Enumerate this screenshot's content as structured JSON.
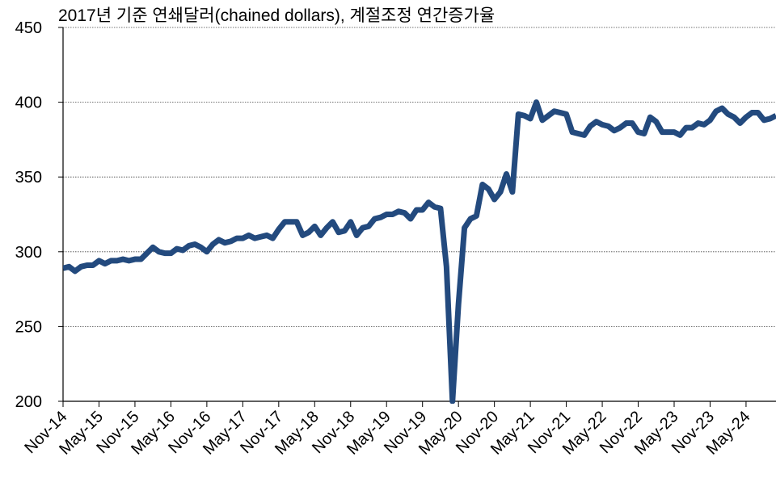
{
  "chart_data": {
    "type": "line",
    "title": "2017년 기준 연쇄달러(chained dollars), 계절조정 연간증가율",
    "categories": [
      "Nov-14",
      null,
      null,
      null,
      null,
      null,
      "May-15",
      null,
      null,
      null,
      null,
      null,
      "Nov-15",
      null,
      null,
      null,
      null,
      null,
      "May-16",
      null,
      null,
      null,
      null,
      null,
      "Nov-16",
      null,
      null,
      null,
      null,
      null,
      "May-17",
      null,
      null,
      null,
      null,
      null,
      "Nov-17",
      null,
      null,
      null,
      null,
      null,
      "May-18",
      null,
      null,
      null,
      null,
      null,
      "Nov-18",
      null,
      null,
      null,
      null,
      null,
      "May-19",
      null,
      null,
      null,
      null,
      null,
      "Nov-19",
      null,
      null,
      null,
      null,
      null,
      "May-20",
      null,
      null,
      null,
      null,
      null,
      "Nov-20",
      null,
      null,
      null,
      null,
      null,
      "May-21",
      null,
      null,
      null,
      null,
      null,
      "Nov-21",
      null,
      null,
      null,
      null,
      null,
      "May-22",
      null,
      null,
      null,
      null,
      null,
      "Nov-22",
      null,
      null,
      null,
      null,
      null,
      "May-23",
      null,
      null,
      null,
      null,
      null,
      "Nov-23",
      null,
      null,
      null,
      null,
      null,
      "May-24",
      null,
      null,
      null,
      null,
      null
    ],
    "values": [
      289,
      290,
      287,
      290,
      291,
      291,
      294,
      292,
      294,
      294,
      295,
      294,
      295,
      295,
      299,
      303,
      300,
      299,
      299,
      302,
      301,
      304,
      305,
      303,
      300,
      305,
      308,
      306,
      307,
      309,
      309,
      311,
      309,
      310,
      311,
      309,
      315,
      320,
      320,
      320,
      311,
      313,
      317,
      311,
      316,
      320,
      313,
      314,
      320,
      311,
      316,
      317,
      322,
      323,
      325,
      325,
      327,
      326,
      322,
      328,
      328,
      333,
      330,
      329,
      290,
      200,
      265,
      316,
      322,
      324,
      345,
      342,
      335,
      340,
      352,
      340,
      392,
      391,
      389,
      400,
      388,
      391,
      394,
      393,
      392,
      380,
      379,
      378,
      384,
      387,
      385,
      384,
      381,
      383,
      386,
      386,
      380,
      379,
      390,
      387,
      380,
      380,
      380,
      378,
      383,
      383,
      386,
      385,
      388,
      394,
      396,
      392,
      390,
      386,
      390,
      393,
      393,
      388,
      389,
      391
    ],
    "color": "#234a7e",
    "ylim": [
      200,
      450
    ],
    "yticks": [
      200,
      250,
      300,
      350,
      400,
      450
    ],
    "grid": true
  }
}
